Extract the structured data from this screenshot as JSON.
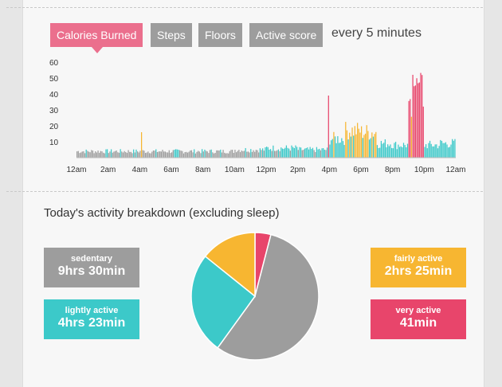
{
  "tabs": [
    {
      "label": "Calories Burned",
      "active": true
    },
    {
      "label": "Steps",
      "active": false
    },
    {
      "label": "Floors",
      "active": false
    },
    {
      "label": "Active score",
      "active": false
    }
  ],
  "interval_label": "every 5 minutes",
  "chart_data": {
    "type": "bar",
    "title": "Calories Burned",
    "xlabel": "",
    "ylabel": "",
    "ylim": [
      0,
      60
    ],
    "yticks": [
      "10",
      "20",
      "30",
      "40",
      "50",
      "60"
    ],
    "x_tick_labels": [
      "12am",
      "2am",
      "4am",
      "6am",
      "8am",
      "10am",
      "12pm",
      "2pm",
      "4pm",
      "6pm",
      "8pm",
      "10pm",
      "12am"
    ],
    "series_colors": {
      "sedentary": "#9d9d9d",
      "lightly": "#3cc9c9",
      "fairly": "#f7b631",
      "very": "#e8456b"
    },
    "hourly_base": [
      4,
      4,
      4,
      4,
      4,
      4,
      4,
      4,
      4,
      4,
      5,
      5,
      6,
      6,
      5,
      5,
      12,
      17,
      16,
      9,
      8,
      28,
      8,
      9
    ],
    "peaks": [
      {
        "hour": 4.1,
        "value": 16,
        "level": "fairly"
      },
      {
        "hour": 15.9,
        "value": 39,
        "level": "very"
      },
      {
        "hour": 21.4,
        "value": 55,
        "level": "very"
      },
      {
        "hour": 21.8,
        "value": 52,
        "level": "very"
      }
    ]
  },
  "breakdown": {
    "title": "Today's activity breakdown (excluding sleep)",
    "items": [
      {
        "key": "sedentary",
        "label": "sedentary",
        "value": "9hrs 30min",
        "minutes": 570,
        "color": "#9d9d9d"
      },
      {
        "key": "lightly",
        "label": "lightly active",
        "value": "4hrs 23min",
        "minutes": 263,
        "color": "#3cc9c9"
      },
      {
        "key": "fairly",
        "label": "fairly active",
        "value": "2hrs 25min",
        "minutes": 145,
        "color": "#f7b631"
      },
      {
        "key": "very",
        "label": "very active",
        "value": "41min",
        "minutes": 41,
        "color": "#e8456b"
      }
    ]
  }
}
